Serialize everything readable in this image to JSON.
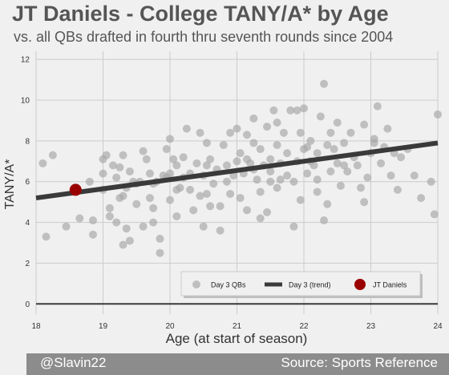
{
  "title": "JT Daniels - College TANY/A* by Age",
  "subtitle": "vs. all QBs drafted in fourth thru seventh rounds since 2004",
  "footer": {
    "left": "@Slavin22",
    "right": "Source: Sports Reference"
  },
  "colors": {
    "background": "#f0f0f0",
    "points": "#a9a9a9",
    "trend": "#3a3a3a",
    "highlight": "#990000",
    "footer": "#8c8c8c"
  },
  "chart_data": {
    "type": "scatter",
    "xlabel": "Age (at start of season)",
    "ylabel": "TANY/A*",
    "xlim": [
      18,
      24
    ],
    "ylim": [
      -0.5,
      12.4
    ],
    "xticks": [
      "18",
      "19",
      "20",
      "21",
      "22",
      "23",
      "24"
    ],
    "yticks": [
      "0",
      "2",
      "4",
      "6",
      "8",
      "10",
      "12"
    ],
    "grid": true,
    "legend": {
      "placement": "bottom-right",
      "entries": [
        "Day 3 QBs",
        "Day 3 (trend)",
        "JT Daniels"
      ]
    },
    "series": [
      {
        "name": "Day 3 QBs",
        "kind": "scatter",
        "points": [
          [
            18.1,
            6.9
          ],
          [
            18.15,
            3.3
          ],
          [
            18.25,
            7.3
          ],
          [
            18.45,
            3.8
          ],
          [
            18.6,
            5.7
          ],
          [
            18.65,
            4.2
          ],
          [
            18.8,
            6.0
          ],
          [
            18.85,
            3.4
          ],
          [
            18.85,
            4.1
          ],
          [
            19.0,
            7.1
          ],
          [
            19.0,
            6.4
          ],
          [
            19.0,
            5.6
          ],
          [
            19.05,
            7.3
          ],
          [
            19.1,
            4.7
          ],
          [
            19.1,
            4.3
          ],
          [
            19.15,
            6.8
          ],
          [
            19.2,
            6.2
          ],
          [
            19.2,
            4.0
          ],
          [
            19.25,
            6.7
          ],
          [
            19.25,
            5.2
          ],
          [
            19.3,
            7.3
          ],
          [
            19.3,
            2.9
          ],
          [
            19.35,
            3.7
          ],
          [
            19.35,
            5.7
          ],
          [
            19.4,
            6.5
          ],
          [
            19.4,
            3.1
          ],
          [
            19.45,
            6.0
          ],
          [
            19.5,
            4.9
          ],
          [
            19.5,
            5.9
          ],
          [
            19.55,
            6.0
          ],
          [
            19.6,
            7.5
          ],
          [
            19.6,
            3.8
          ],
          [
            19.65,
            7.1
          ],
          [
            19.7,
            6.4
          ],
          [
            19.7,
            5.2
          ],
          [
            19.75,
            4.7
          ],
          [
            19.75,
            5.9
          ],
          [
            19.8,
            6.0
          ],
          [
            19.85,
            2.5
          ],
          [
            19.85,
            3.2
          ],
          [
            19.9,
            6.3
          ],
          [
            19.95,
            7.6
          ],
          [
            20.0,
            8.1
          ],
          [
            20.0,
            6.4
          ],
          [
            20.0,
            5.1
          ],
          [
            20.05,
            7.1
          ],
          [
            20.1,
            6.8
          ],
          [
            20.1,
            4.3
          ],
          [
            20.15,
            5.7
          ],
          [
            20.2,
            6.2
          ],
          [
            20.2,
            7.2
          ],
          [
            20.25,
            8.6
          ],
          [
            20.3,
            6.4
          ],
          [
            20.3,
            5.6
          ],
          [
            20.35,
            4.6
          ],
          [
            20.4,
            6.9
          ],
          [
            20.45,
            8.4
          ],
          [
            20.45,
            5.3
          ],
          [
            20.5,
            6.3
          ],
          [
            20.5,
            3.8
          ],
          [
            20.55,
            6.8
          ],
          [
            20.6,
            7.1
          ],
          [
            20.6,
            4.8
          ],
          [
            20.65,
            5.9
          ],
          [
            20.7,
            6.6
          ],
          [
            20.75,
            3.6
          ],
          [
            20.75,
            4.8
          ],
          [
            20.8,
            7.8
          ],
          [
            20.85,
            6.0
          ],
          [
            20.9,
            8.4
          ],
          [
            20.9,
            5.4
          ],
          [
            20.95,
            6.3
          ],
          [
            21.0,
            8.6
          ],
          [
            21.0,
            7.0
          ],
          [
            21.05,
            5.2
          ],
          [
            21.05,
            7.4
          ],
          [
            21.1,
            6.4
          ],
          [
            21.15,
            8.3
          ],
          [
            21.15,
            4.6
          ],
          [
            21.2,
            6.9
          ],
          [
            21.25,
            9.1
          ],
          [
            21.25,
            7.9
          ],
          [
            21.3,
            6.1
          ],
          [
            21.35,
            7.6
          ],
          [
            21.35,
            5.5
          ],
          [
            21.4,
            6.8
          ],
          [
            21.45,
            4.5
          ],
          [
            21.45,
            8.7
          ],
          [
            21.5,
            7.1
          ],
          [
            21.5,
            6.0
          ],
          [
            21.55,
            9.5
          ],
          [
            21.6,
            7.8
          ],
          [
            21.6,
            5.7
          ],
          [
            21.65,
            6.9
          ],
          [
            21.7,
            8.4
          ],
          [
            21.75,
            6.3
          ],
          [
            21.75,
            7.4
          ],
          [
            21.8,
            9.5
          ],
          [
            21.85,
            6.0
          ],
          [
            21.9,
            7.0
          ],
          [
            21.95,
            8.4
          ],
          [
            21.95,
            5.1
          ],
          [
            22.0,
            7.6
          ],
          [
            22.0,
            9.6
          ],
          [
            22.05,
            6.4
          ],
          [
            22.1,
            8.0
          ],
          [
            22.1,
            7.0
          ],
          [
            22.15,
            6.8
          ],
          [
            22.2,
            7.4
          ],
          [
            22.2,
            6.1
          ],
          [
            22.25,
            9.2
          ],
          [
            22.3,
            10.8
          ],
          [
            22.3,
            4.1
          ],
          [
            22.35,
            7.8
          ],
          [
            22.4,
            6.5
          ],
          [
            22.4,
            8.4
          ],
          [
            22.45,
            7.6
          ],
          [
            22.5,
            6.9
          ],
          [
            22.55,
            5.8
          ],
          [
            22.6,
            7.9
          ],
          [
            22.65,
            6.5
          ],
          [
            22.7,
            8.4
          ],
          [
            22.75,
            7.2
          ],
          [
            22.8,
            6.8
          ],
          [
            22.85,
            5.7
          ],
          [
            22.9,
            8.8
          ],
          [
            22.95,
            6.2
          ],
          [
            23.0,
            7.4
          ],
          [
            23.05,
            8.1
          ],
          [
            23.1,
            9.7
          ],
          [
            23.15,
            6.9
          ],
          [
            23.2,
            7.7
          ],
          [
            23.25,
            8.6
          ],
          [
            23.3,
            6.3
          ],
          [
            23.35,
            7.4
          ],
          [
            23.4,
            5.6
          ],
          [
            23.45,
            7.2
          ],
          [
            23.55,
            7.6
          ],
          [
            23.65,
            6.3
          ],
          [
            23.75,
            5.2
          ],
          [
            23.9,
            6.0
          ],
          [
            23.95,
            4.4
          ],
          [
            24.0,
            9.3
          ],
          [
            20.55,
            5.4
          ],
          [
            21.35,
            4.2
          ],
          [
            21.65,
            6.1
          ],
          [
            20.55,
            7.9
          ],
          [
            21.9,
            9.5
          ],
          [
            22.5,
            8.9
          ],
          [
            22.05,
            7.7
          ],
          [
            21.15,
            7.1
          ],
          [
            20.1,
            5.6
          ],
          [
            21.6,
            8.9
          ],
          [
            22.35,
            4.9
          ],
          [
            21.85,
            3.8
          ],
          [
            19.75,
            4.0
          ],
          [
            22.9,
            5.0
          ],
          [
            23.05,
            7.9
          ],
          [
            19.3,
            5.3
          ],
          [
            22.6,
            6.8
          ],
          [
            21.5,
            6.5
          ],
          [
            20.85,
            6.8
          ],
          [
            21.25,
            6.6
          ],
          [
            22.2,
            5.5
          ],
          [
            19.95,
            6.2
          ]
        ]
      },
      {
        "name": "Day 3 (trend)",
        "kind": "line",
        "points": [
          [
            18,
            5.2
          ],
          [
            24,
            7.9
          ]
        ]
      },
      {
        "name": "JT Daniels",
        "kind": "highlight",
        "points": [
          [
            18.59,
            5.6
          ]
        ]
      }
    ]
  }
}
